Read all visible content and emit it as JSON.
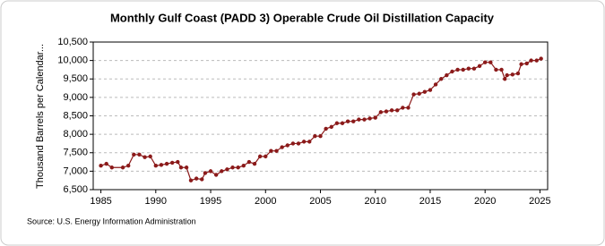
{
  "chart_data": {
    "type": "line",
    "title": "Monthly Gulf Coast (PADD 3) Operable Crude Oil Distillation Capacity",
    "y_label": "Thousand Barrels per Calendar...",
    "source": "Source: U.S. Energy Information Administration",
    "x": [
      1985,
      1985.5,
      1986,
      1987,
      1987.5,
      1988,
      1988.5,
      1989,
      1989.5,
      1990,
      1990.5,
      1991,
      1991.5,
      1992,
      1992.3,
      1992.8,
      1993.2,
      1993.7,
      1994.2,
      1994.5,
      1995,
      1995.5,
      1996,
      1996.5,
      1997,
      1997.5,
      1998,
      1998.5,
      1999,
      1999.5,
      2000,
      2000.5,
      2001,
      2001.5,
      2002,
      2002.5,
      2003,
      2003.5,
      2004,
      2004.5,
      2005,
      2005.5,
      2006,
      2006.5,
      2007,
      2007.5,
      2008,
      2008.5,
      2009,
      2009.5,
      2010,
      2010.5,
      2011,
      2011.5,
      2012,
      2012.5,
      2013,
      2013.5,
      2014,
      2014.5,
      2015,
      2015.5,
      2016,
      2016.5,
      2017,
      2017.5,
      2018,
      2018.5,
      2019,
      2019.5,
      2020,
      2020.5,
      2021,
      2021.5,
      2021.8,
      2022,
      2022.5,
      2023,
      2023.3,
      2023.8,
      2024.2,
      2024.7,
      2025.1
    ],
    "series": [
      {
        "name": "Gulf Coast (PADD 3) Operable Crude Oil Distillation Capacity",
        "color": "#8b1a1a",
        "values": [
          7150,
          7200,
          7100,
          7100,
          7150,
          7450,
          7450,
          7380,
          7400,
          7150,
          7170,
          7200,
          7230,
          7250,
          7100,
          7100,
          6750,
          6800,
          6780,
          6950,
          7000,
          6900,
          7000,
          7050,
          7100,
          7100,
          7150,
          7250,
          7200,
          7400,
          7400,
          7550,
          7550,
          7650,
          7700,
          7750,
          7750,
          7800,
          7800,
          7950,
          7950,
          8150,
          8200,
          8300,
          8300,
          8350,
          8350,
          8400,
          8400,
          8430,
          8450,
          8600,
          8620,
          8650,
          8650,
          8720,
          8720,
          9080,
          9100,
          9150,
          9200,
          9350,
          9500,
          9600,
          9700,
          9750,
          9750,
          9780,
          9780,
          9850,
          9950,
          9950,
          9750,
          9750,
          9500,
          9600,
          9620,
          9650,
          9900,
          9920,
          10000,
          10000,
          10050
        ]
      }
    ],
    "xlim": [
      1984.3,
      2025.7
    ],
    "xticks": [
      1985,
      1990,
      1995,
      2000,
      2005,
      2010,
      2015,
      2020,
      2025
    ],
    "ylim": [
      6500,
      10500
    ],
    "yticks": [
      {
        "value": 6500,
        "label": "6,500"
      },
      {
        "value": 7000,
        "label": "7,000"
      },
      {
        "value": 7500,
        "label": "7,500"
      },
      {
        "value": 8000,
        "label": "8,000"
      },
      {
        "value": 8500,
        "label": "8,500"
      },
      {
        "value": 9000,
        "label": "9,000"
      },
      {
        "value": 9500,
        "label": "9,500"
      },
      {
        "value": 10000,
        "label": "10,000"
      },
      {
        "value": 10500,
        "label": "10,500"
      }
    ],
    "grid": true
  }
}
